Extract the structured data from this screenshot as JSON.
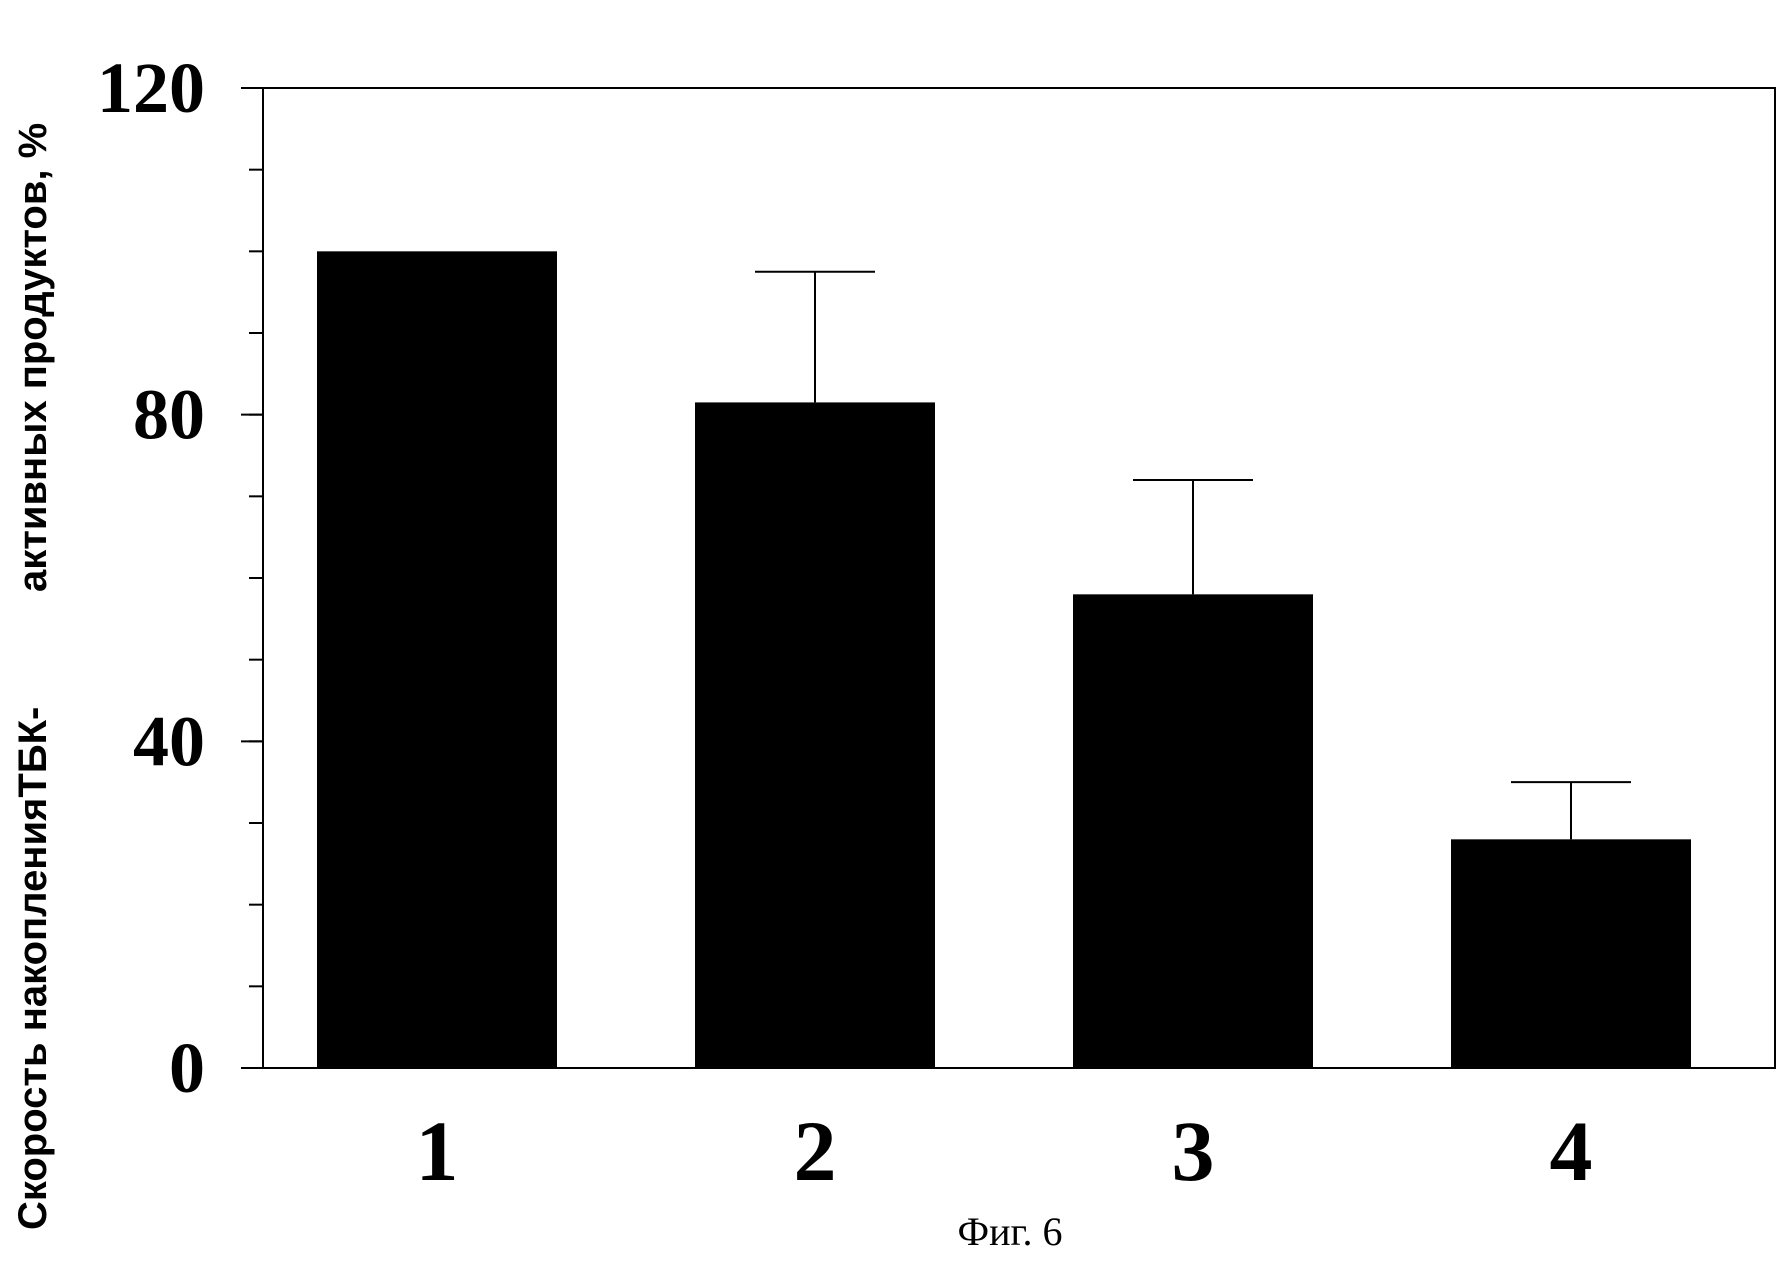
{
  "chart_data": {
    "type": "bar",
    "categories": [
      "1",
      "2",
      "3",
      "4"
    ],
    "values": [
      100,
      81.5,
      58,
      28
    ],
    "error_plus": [
      0,
      16,
      14,
      7
    ],
    "ylim": [
      0,
      120
    ],
    "yticks": [
      0,
      40,
      80,
      120
    ],
    "minor_ytick_step": 10,
    "ylabel_part1": "Скорость накопленияТБК-",
    "ylabel_part2": "активных продуктов, %",
    "caption": "Фиг. 6",
    "bar_color": "#000000",
    "grid": false
  }
}
